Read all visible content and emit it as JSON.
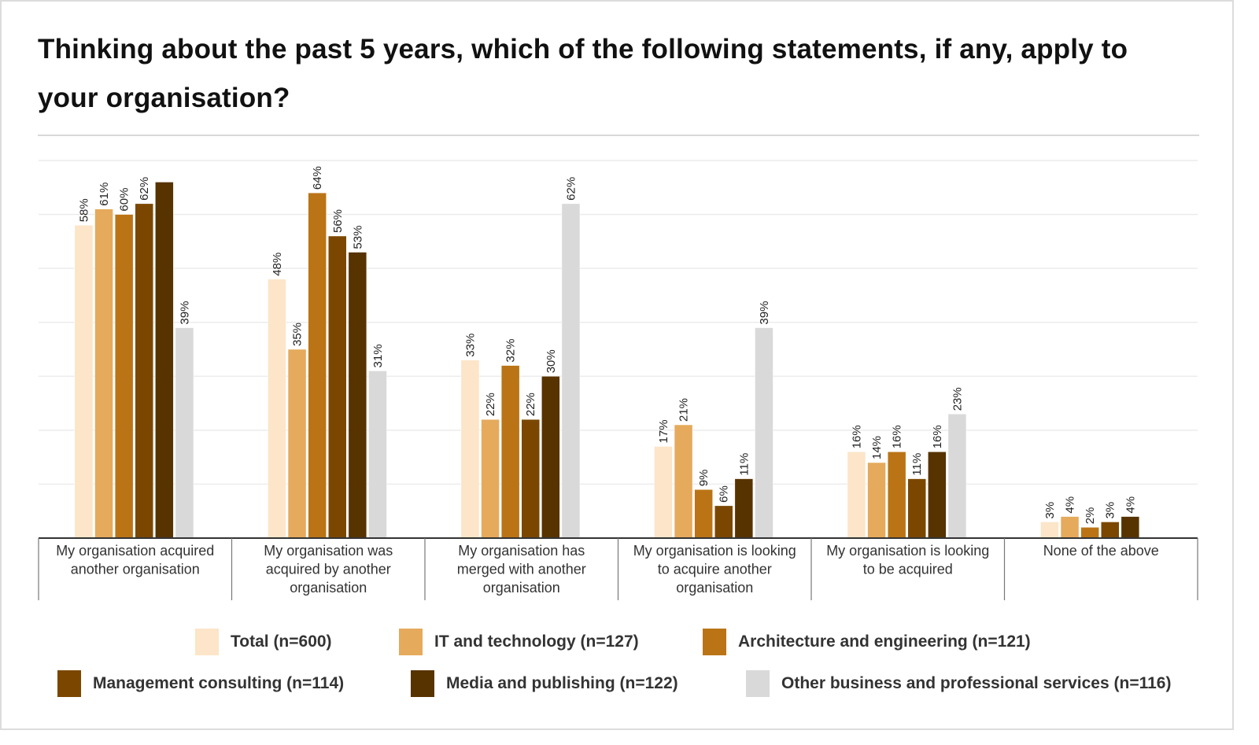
{
  "chart_data": {
    "type": "bar",
    "title": "Thinking about the past 5 years, which of the following statements, if any, apply to your organisation?",
    "xlabel": "",
    "ylabel": "",
    "ylim": [
      0,
      70
    ],
    "grid": true,
    "legend_position": "bottom",
    "categories": [
      "My organisation acquired another organisation",
      "My organisation was acquired by another organisation",
      "My organisation has merged with another organisation",
      "My organisation is looking to acquire another organisation",
      "My organisation is looking to be acquired",
      "None of the above"
    ],
    "category_lines": [
      [
        "My organisation acquired",
        "another organisation"
      ],
      [
        "My organisation was",
        "acquired by another",
        "organisation"
      ],
      [
        "My organisation has",
        "merged with another",
        "organisation"
      ],
      [
        "My organisation is looking",
        "to acquire another",
        "organisation"
      ],
      [
        "My organisation is looking",
        "to be acquired"
      ],
      [
        "None of the above"
      ]
    ],
    "series": [
      {
        "name": "Total (n=600)",
        "color": "#FCE5C8",
        "values": [
          58,
          48,
          33,
          17,
          16,
          3
        ],
        "labels": [
          "58%",
          "48%",
          "33%",
          "17%",
          "16%",
          "3%"
        ]
      },
      {
        "name": "IT and technology (n=127)",
        "color": "#E5AA5C",
        "values": [
          61,
          35,
          22,
          21,
          14,
          4
        ],
        "labels": [
          "61%",
          "35%",
          "22%",
          "21%",
          "14%",
          "4%"
        ]
      },
      {
        "name": "Architecture and engineering (n=121)",
        "color": "#BA7416",
        "values": [
          60,
          64,
          32,
          9,
          16,
          2
        ],
        "labels": [
          "60%",
          "64%",
          "32%",
          "9%",
          "16%",
          "2%"
        ]
      },
      {
        "name": "Management consulting (n=114)",
        "color": "#7B4700",
        "values": [
          62,
          56,
          22,
          6,
          11,
          3
        ],
        "labels": [
          "62%",
          "56%",
          "22%",
          "6%",
          "11%",
          "3%"
        ]
      },
      {
        "name": "Media and publishing (n=122)",
        "color": "#573300",
        "values": [
          66,
          53,
          30,
          11,
          16,
          4
        ],
        "labels": [
          "",
          "53%",
          "30%",
          "11%",
          "16%",
          "4%"
        ]
      },
      {
        "name": "Other business and professional services (n=116)",
        "color": "#D9D9D9",
        "values": [
          39,
          31,
          62,
          39,
          23,
          0
        ],
        "labels": [
          "39%",
          "31%",
          "62%",
          "39%",
          "23%",
          ""
        ]
      }
    ]
  }
}
